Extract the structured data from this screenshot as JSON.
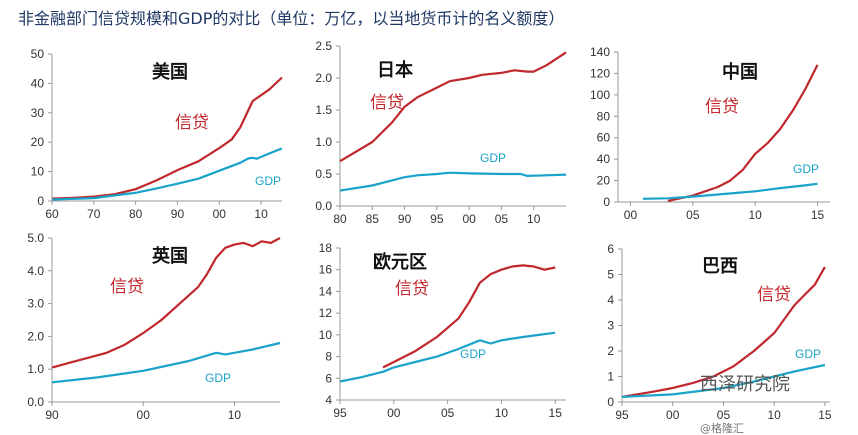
{
  "title": "非金融部门信贷规模和GDP的对比（单位：万亿，以当地货币计的名义额度）",
  "watermark": "西泽研究院",
  "watermark2": "@格隆汇",
  "chart_data": [
    {
      "type": "line",
      "title": "美国",
      "xlim": [
        1960,
        2015
      ],
      "ylim": [
        0,
        50
      ],
      "yticks": [
        0,
        10,
        20,
        30,
        40,
        50
      ],
      "ytick_labels": [
        "0",
        "10",
        "20",
        "30",
        "40",
        "50"
      ],
      "xticks": [
        1960,
        1970,
        1980,
        1990,
        2000,
        2010
      ],
      "xtick_labels": [
        "60",
        "70",
        "80",
        "90",
        "00",
        "10"
      ],
      "series": [
        {
          "name": "信贷",
          "color": "#c0282d",
          "x": [
            1960,
            1965,
            1970,
            1975,
            1980,
            1985,
            1990,
            1995,
            2000,
            2003,
            2005,
            2007,
            2008,
            2010,
            2012,
            2015
          ],
          "y": [
            0.8,
            1.1,
            1.5,
            2.3,
            4,
            7,
            10.5,
            13.5,
            18,
            21,
            25,
            31,
            34,
            36,
            38,
            42
          ]
        },
        {
          "name": "GDP",
          "color": "#1aa3c9",
          "x": [
            1960,
            1970,
            1980,
            1985,
            1990,
            1995,
            2000,
            2005,
            2007,
            2008,
            2009,
            2010,
            2012,
            2015
          ],
          "y": [
            0.5,
            1,
            2.8,
            4.3,
            5.9,
            7.6,
            10.3,
            13,
            14.5,
            14.7,
            14.4,
            15,
            16.2,
            17.9
          ]
        }
      ]
    },
    {
      "type": "line",
      "title": "日本",
      "xlim": [
        1980,
        2015
      ],
      "ylim": [
        0,
        2.5
      ],
      "yticks": [
        0,
        0.5,
        1,
        1.5,
        2,
        2.5
      ],
      "ytick_labels": [
        "0.0",
        "0.5",
        "1.0",
        "1.5",
        "2.0",
        "2.5"
      ],
      "xticks": [
        1980,
        1985,
        1990,
        1995,
        2000,
        2005,
        2010
      ],
      "xtick_labels": [
        "80",
        "85",
        "90",
        "95",
        "00",
        "05",
        "10"
      ],
      "series": [
        {
          "name": "信贷",
          "color": "#c0282d",
          "x": [
            1980,
            1985,
            1988,
            1990,
            1992,
            1995,
            1997,
            2000,
            2002,
            2005,
            2007,
            2009,
            2010,
            2012,
            2015
          ],
          "y": [
            0.7,
            1.0,
            1.3,
            1.55,
            1.7,
            1.85,
            1.95,
            2.0,
            2.05,
            2.08,
            2.12,
            2.1,
            2.1,
            2.2,
            2.4
          ]
        },
        {
          "name": "GDP",
          "color": "#1aa3c9",
          "x": [
            1980,
            1985,
            1990,
            1992,
            1995,
            1997,
            2000,
            2005,
            2008,
            2009,
            2012,
            2015
          ],
          "y": [
            0.24,
            0.32,
            0.45,
            0.48,
            0.5,
            0.52,
            0.51,
            0.5,
            0.5,
            0.47,
            0.48,
            0.49
          ]
        }
      ]
    },
    {
      "type": "line",
      "title": "中国",
      "xlim": [
        1999,
        2016
      ],
      "ylim": [
        0,
        140
      ],
      "yticks": [
        0,
        20,
        40,
        60,
        80,
        100,
        120,
        140
      ],
      "ytick_labels": [
        "0",
        "20",
        "40",
        "60",
        "80",
        "100",
        "120",
        "140"
      ],
      "xticks": [
        2000,
        2005,
        2010,
        2015
      ],
      "xtick_labels": [
        "00",
        "05",
        "10",
        "15"
      ],
      "series": [
        {
          "name": "信贷",
          "color": "#c0282d",
          "x": [
            2003,
            2005,
            2007,
            2008,
            2009,
            2010,
            2011,
            2012,
            2013,
            2014,
            2015
          ],
          "y": [
            1,
            6,
            14,
            20,
            30,
            45,
            55,
            68,
            85,
            105,
            128
          ]
        },
        {
          "name": "GDP",
          "color": "#1aa3c9",
          "x": [
            2001,
            2003,
            2005,
            2007,
            2009,
            2010,
            2012,
            2014,
            2015
          ],
          "y": [
            3,
            3.5,
            5,
            7,
            9,
            10,
            13,
            15.5,
            17
          ]
        }
      ]
    },
    {
      "type": "line",
      "title": "英国",
      "xlim": [
        1990,
        2015
      ],
      "ylim": [
        0,
        5
      ],
      "yticks": [
        0,
        1,
        2,
        3,
        4,
        5
      ],
      "ytick_labels": [
        "0.0",
        "1.0",
        "2.0",
        "3.0",
        "4.0",
        "5.0"
      ],
      "xticks": [
        1990,
        2000,
        2010
      ],
      "xtick_labels": [
        "90",
        "00",
        "10"
      ],
      "series": [
        {
          "name": "信贷",
          "color": "#c0282d",
          "x": [
            1990,
            1992,
            1994,
            1996,
            1998,
            2000,
            2002,
            2004,
            2006,
            2007,
            2008,
            2009,
            2010,
            2011,
            2012,
            2013,
            2014,
            2015
          ],
          "y": [
            1.05,
            1.2,
            1.35,
            1.5,
            1.75,
            2.1,
            2.5,
            3.0,
            3.5,
            3.9,
            4.4,
            4.7,
            4.8,
            4.85,
            4.75,
            4.9,
            4.85,
            5.0
          ]
        },
        {
          "name": "GDP",
          "color": "#1aa3c9",
          "x": [
            1990,
            1995,
            2000,
            2005,
            2008,
            2009,
            2010,
            2012,
            2015
          ],
          "y": [
            0.6,
            0.75,
            0.95,
            1.25,
            1.5,
            1.45,
            1.5,
            1.6,
            1.8
          ]
        }
      ]
    },
    {
      "type": "line",
      "title": "欧元区",
      "xlim": [
        1995,
        2016
      ],
      "ylim": [
        4,
        18
      ],
      "yticks": [
        4,
        6,
        8,
        10,
        12,
        14,
        16,
        18
      ],
      "ytick_labels": [
        "4",
        "6",
        "8",
        "10",
        "12",
        "14",
        "16",
        "18"
      ],
      "xticks": [
        1995,
        2000,
        2005,
        2010,
        2015
      ],
      "xtick_labels": [
        "95",
        "00",
        "05",
        "10",
        "15"
      ],
      "series": [
        {
          "name": "信贷",
          "color": "#c0282d",
          "x": [
            1999,
            2000,
            2002,
            2004,
            2006,
            2007,
            2008,
            2009,
            2010,
            2011,
            2012,
            2013,
            2014,
            2015
          ],
          "y": [
            7,
            7.5,
            8.5,
            9.8,
            11.5,
            13,
            14.8,
            15.6,
            16,
            16.3,
            16.4,
            16.3,
            16,
            16.2
          ]
        },
        {
          "name": "GDP",
          "color": "#1aa3c9",
          "x": [
            1995,
            1997,
            1999,
            2000,
            2002,
            2004,
            2006,
            2008,
            2009,
            2010,
            2012,
            2015
          ],
          "y": [
            5.7,
            6.1,
            6.6,
            7,
            7.5,
            8.0,
            8.7,
            9.5,
            9.2,
            9.5,
            9.8,
            10.2
          ]
        }
      ]
    },
    {
      "type": "line",
      "title": "巴西",
      "xlim": [
        1995,
        2015.5
      ],
      "ylim": [
        0,
        6
      ],
      "yticks": [
        0,
        1,
        2,
        3,
        4,
        5,
        6
      ],
      "ytick_labels": [
        "0",
        "1",
        "2",
        "3",
        "4",
        "5",
        "6"
      ],
      "xticks": [
        1995,
        2000,
        2005,
        2010,
        2015
      ],
      "xtick_labels": [
        "95",
        "00",
        "05",
        "10",
        "15"
      ],
      "series": [
        {
          "name": "信贷",
          "color": "#c0282d",
          "x": [
            1995,
            1998,
            2000,
            2002,
            2004,
            2006,
            2008,
            2010,
            2012,
            2013,
            2014,
            2015
          ],
          "y": [
            0.2,
            0.4,
            0.55,
            0.75,
            1.0,
            1.4,
            2.0,
            2.7,
            3.8,
            4.2,
            4.6,
            5.3
          ]
        },
        {
          "name": "GDP",
          "color": "#1aa3c9",
          "x": [
            1995,
            2000,
            2005,
            2008,
            2010,
            2012,
            2015
          ],
          "y": [
            0.2,
            0.3,
            0.55,
            0.8,
            1.0,
            1.2,
            1.45
          ]
        }
      ]
    }
  ]
}
